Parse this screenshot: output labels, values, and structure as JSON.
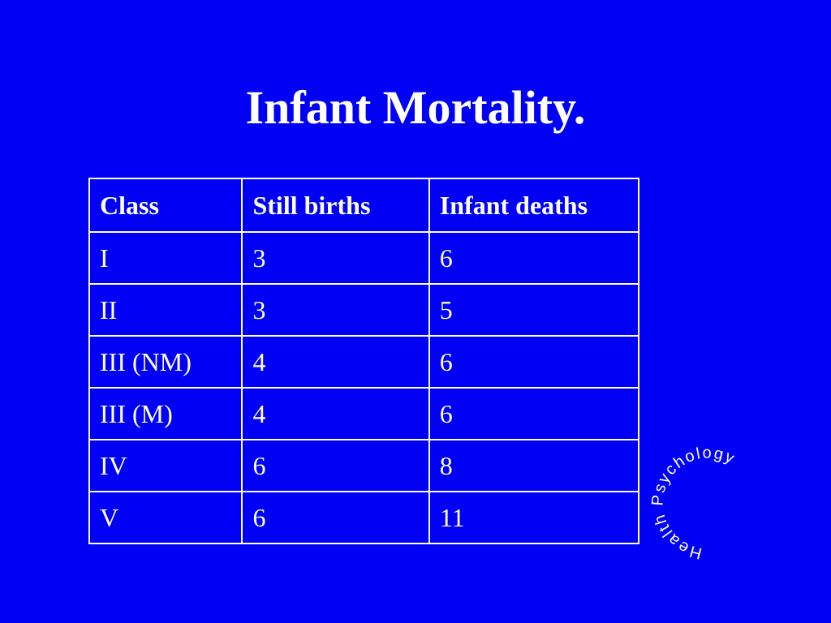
{
  "slide": {
    "title": "Infant Mortality.",
    "background_color": "#0000f5",
    "text_color": "#ffffff"
  },
  "table": {
    "headers": [
      "Class",
      "Still births",
      "Infant deaths"
    ],
    "rows": [
      [
        "I",
        "3",
        "6"
      ],
      [
        "II",
        "3",
        "5"
      ],
      [
        "III (NM)",
        "4",
        "6"
      ],
      [
        "III (M)",
        "4",
        "6"
      ],
      [
        "IV",
        "6",
        "8"
      ],
      [
        "V",
        "6",
        "11"
      ]
    ]
  },
  "logo": {
    "text": "Health Psychology"
  }
}
